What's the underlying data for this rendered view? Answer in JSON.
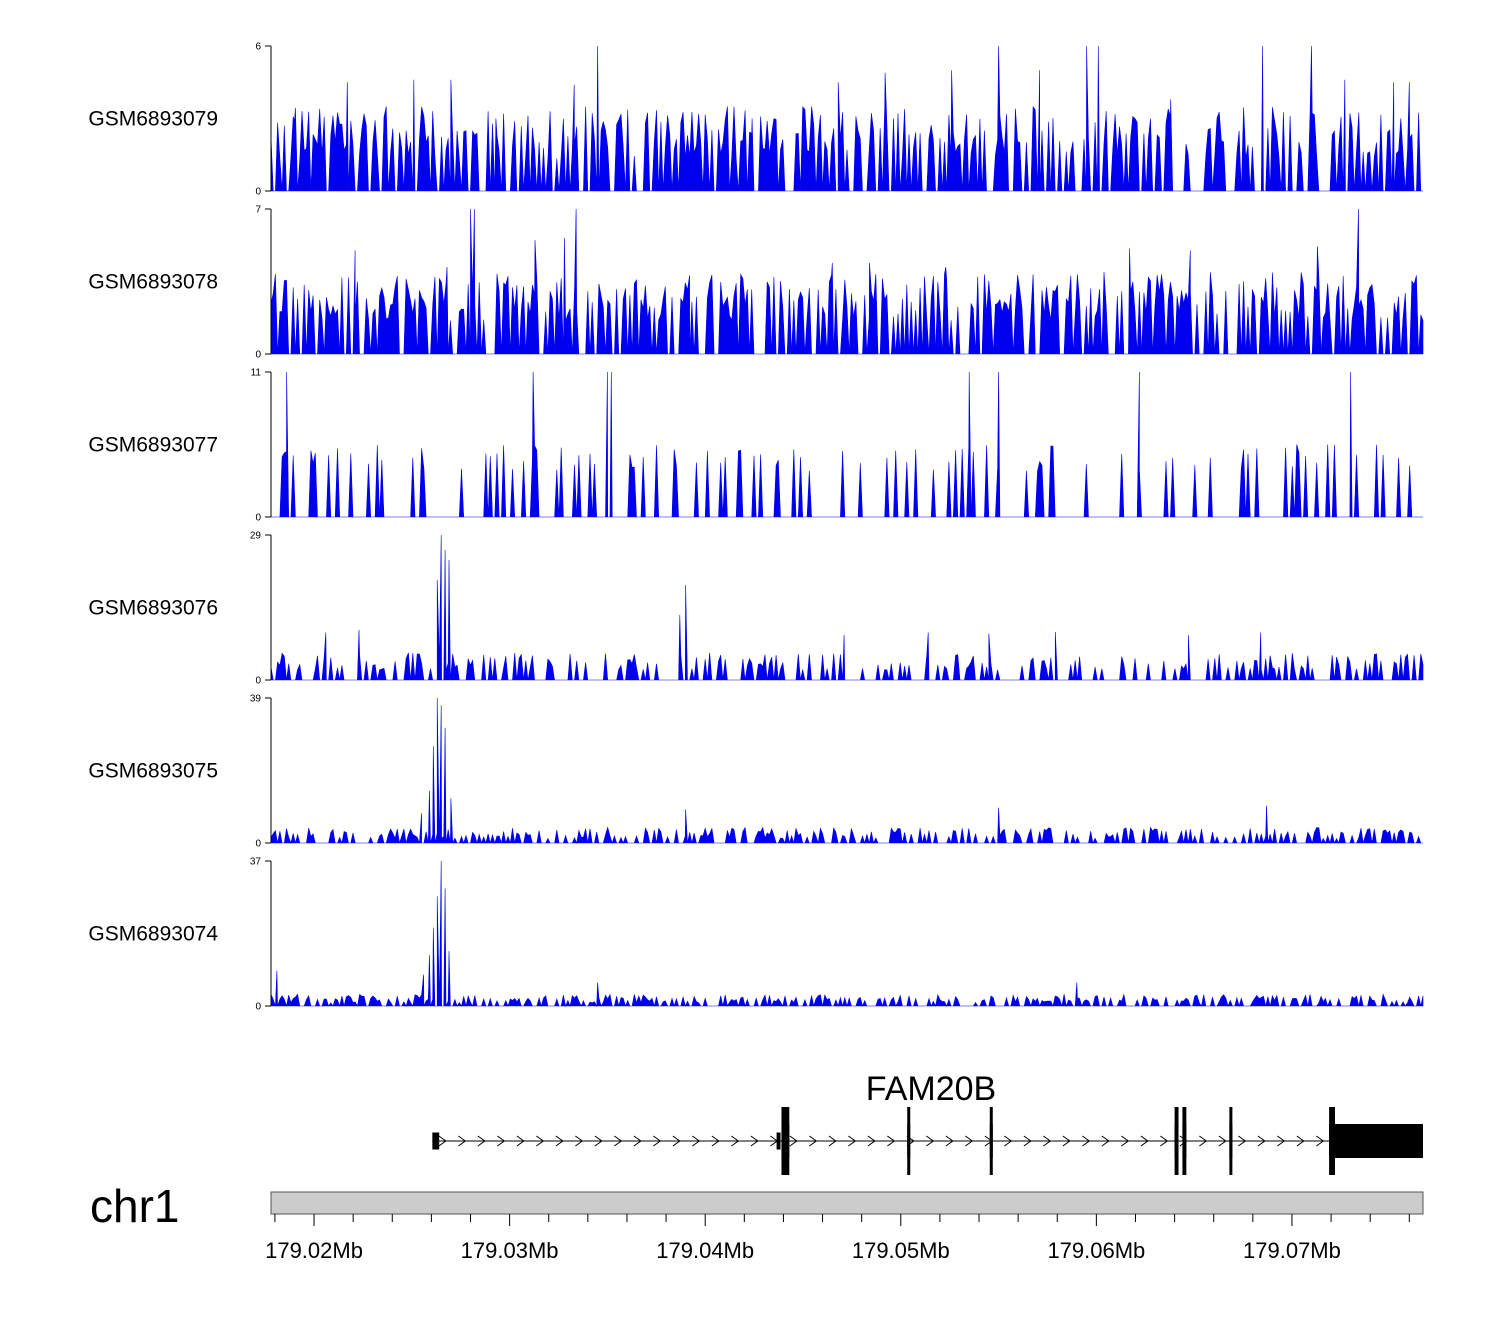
{
  "chart_data": {
    "type": "area",
    "title": "",
    "region": {
      "chrom": "chr1",
      "start": 179017800,
      "end": 179076700
    },
    "fill_color": "#0000ee",
    "axis_color": "#000000",
    "tracks": [
      {
        "name": "GSM6893079",
        "ylim": [
          0,
          6
        ],
        "y_ticks": [
          "6",
          "0"
        ],
        "seed": 79,
        "base": 1.3,
        "noise": 2.2,
        "density": 0.55,
        "peaks": [
          [
            179019000,
            2.9
          ],
          [
            179021700,
            4.5
          ],
          [
            179025100,
            4.6
          ],
          [
            179027000,
            4.6
          ],
          [
            179029300,
            3.0
          ],
          [
            179033300,
            4.4
          ],
          [
            179034500,
            6.0
          ],
          [
            179042400,
            3.0
          ],
          [
            179046800,
            4.5
          ],
          [
            179049200,
            4.9
          ],
          [
            179052600,
            5.0
          ],
          [
            179055000,
            6.0
          ],
          [
            179057100,
            5.0
          ],
          [
            179059500,
            6.0
          ],
          [
            179060100,
            6.0
          ],
          [
            179063800,
            3.8
          ],
          [
            179068500,
            6.0
          ],
          [
            179071000,
            6.0
          ],
          [
            179072700,
            4.6
          ],
          [
            179076000,
            4.5
          ],
          [
            179075200,
            4.5
          ]
        ]
      },
      {
        "name": "GSM6893078",
        "ylim": [
          0,
          7
        ],
        "y_ticks": [
          "7",
          "0"
        ],
        "seed": 78,
        "base": 1.6,
        "noise": 2.4,
        "density": 0.6,
        "peaks": [
          [
            179022100,
            5.0
          ],
          [
            179026800,
            4.2
          ],
          [
            179028000,
            7.0
          ],
          [
            179028200,
            7.0
          ],
          [
            179031300,
            5.5
          ],
          [
            179032800,
            5.6
          ],
          [
            179033400,
            7.0
          ],
          [
            179039200,
            3.8
          ],
          [
            179046500,
            4.4
          ],
          [
            179048400,
            4.4
          ],
          [
            179052300,
            4.2
          ],
          [
            179061700,
            5.1
          ],
          [
            179064800,
            5.0
          ],
          [
            179071300,
            5.2
          ],
          [
            179073400,
            7.0
          ]
        ]
      },
      {
        "name": "GSM6893077",
        "ylim": [
          0,
          11
        ],
        "y_ticks": [
          "11",
          "0"
        ],
        "seed": 77,
        "base": 3.5,
        "noise": 2.0,
        "density": 0.22,
        "peaks": [
          [
            179018600,
            11.0
          ],
          [
            179031200,
            11.0
          ],
          [
            179035000,
            11.0
          ],
          [
            179035200,
            11.0
          ],
          [
            179053500,
            11.0
          ],
          [
            179055000,
            11.0
          ],
          [
            179062200,
            11.0
          ],
          [
            179073000,
            11.0
          ]
        ]
      },
      {
        "name": "GSM6893076",
        "ylim": [
          0,
          29
        ],
        "y_ticks": [
          "29",
          "0"
        ],
        "seed": 76,
        "base": 2.0,
        "noise": 3.5,
        "density": 0.3,
        "peaks": [
          [
            179026300,
            20.0
          ],
          [
            179026500,
            29.0
          ],
          [
            179026700,
            26.0
          ],
          [
            179026900,
            24.0
          ],
          [
            179038700,
            13.0
          ],
          [
            179039000,
            19.0
          ],
          [
            179022300,
            10.0
          ],
          [
            179020600,
            9.5
          ],
          [
            179047100,
            9.0
          ],
          [
            179051400,
            9.5
          ],
          [
            179054500,
            9.3
          ],
          [
            179057900,
            9.6
          ],
          [
            179068400,
            9.5
          ],
          [
            179064700,
            9.0
          ]
        ]
      },
      {
        "name": "GSM6893075",
        "ylim": [
          0,
          39
        ],
        "y_ticks": [
          "39",
          "0"
        ],
        "seed": 75,
        "base": 1.2,
        "noise": 3.0,
        "density": 0.45,
        "peaks": [
          [
            179025500,
            8.0
          ],
          [
            179025900,
            14.0
          ],
          [
            179026100,
            26.0
          ],
          [
            179026300,
            39.0
          ],
          [
            179026500,
            37.0
          ],
          [
            179026700,
            31.0
          ],
          [
            179027000,
            12.0
          ],
          [
            179039000,
            9.0
          ],
          [
            179055000,
            9.5
          ],
          [
            179068700,
            10.0
          ]
        ]
      },
      {
        "name": "GSM6893074",
        "ylim": [
          0,
          37
        ],
        "y_ticks": [
          "37",
          "0"
        ],
        "seed": 74,
        "base": 0.8,
        "noise": 2.2,
        "density": 0.5,
        "peaks": [
          [
            179018100,
            9.0
          ],
          [
            179025600,
            8.0
          ],
          [
            179025900,
            13.0
          ],
          [
            179026100,
            20.0
          ],
          [
            179026300,
            28.0
          ],
          [
            179026500,
            37.0
          ],
          [
            179026700,
            30.0
          ],
          [
            179026900,
            14.0
          ],
          [
            179034500,
            6.0
          ],
          [
            179059000,
            6.0
          ]
        ]
      }
    ],
    "gene": {
      "name": "FAM20B",
      "strand": "+",
      "tx_start": 179026050,
      "tx_end": 179076700,
      "exons": [
        {
          "start": 179026050,
          "end": 179026400,
          "height": "thin"
        },
        {
          "start": 179043650,
          "end": 179043850,
          "height": "thin"
        },
        {
          "start": 179043900,
          "end": 179044300,
          "height": "thick"
        },
        {
          "start": 179050330,
          "end": 179050450,
          "height": "thick"
        },
        {
          "start": 179054550,
          "end": 179054670,
          "height": "thick"
        },
        {
          "start": 179064000,
          "end": 179064200,
          "height": "thick"
        },
        {
          "start": 179064400,
          "end": 179064600,
          "height": "thick"
        },
        {
          "start": 179066800,
          "end": 179066900,
          "height": "thick"
        },
        {
          "start": 179071900,
          "end": 179072200,
          "height": "thick"
        },
        {
          "start": 179072200,
          "end": 179076700,
          "height": "utr_block"
        }
      ]
    },
    "genome_axis": {
      "chrom_label": "chr1",
      "major_ticks": [
        179020000,
        179030000,
        179040000,
        179050000,
        179060000,
        179070000
      ],
      "major_tick_labels": [
        "179.02Mb",
        "179.03Mb",
        "179.04Mb",
        "179.05Mb",
        "179.06Mb",
        "179.07Mb"
      ],
      "minor_tick_step": 2000,
      "ideogram_color": "#cccccc"
    }
  }
}
